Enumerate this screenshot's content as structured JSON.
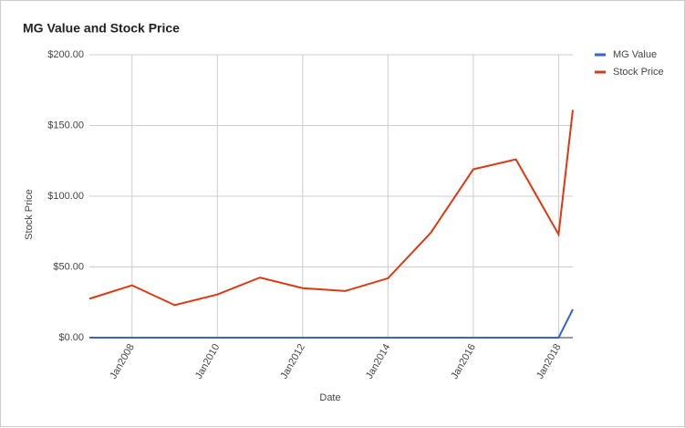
{
  "chart_data": {
    "type": "line",
    "title": "MG Value and Stock Price",
    "x_label": "Date",
    "y_label": "Stock Price",
    "x": [
      "2007-01",
      "2008-01",
      "2009-01",
      "2010-01",
      "2011-01",
      "2012-01",
      "2013-01",
      "2014-01",
      "2015-01",
      "2016-01",
      "2017-01",
      "2018-01",
      "2018-05"
    ],
    "series": [
      {
        "name": "MG Value",
        "color": "#3366cc",
        "values": [
          0,
          0,
          0,
          0,
          0,
          0,
          0,
          0,
          0,
          0,
          0,
          0,
          20
        ]
      },
      {
        "name": "Stock Price",
        "color": "#dc3912",
        "values": [
          27.5,
          37,
          23,
          30.5,
          42.5,
          35,
          33,
          42,
          74,
          119,
          126,
          73,
          161
        ]
      }
    ],
    "xlim": [
      "2007-01",
      "2018-05"
    ],
    "xticks": [
      {
        "value": "2008-01",
        "label": "Jan2008"
      },
      {
        "value": "2010-01",
        "label": "Jan2010"
      },
      {
        "value": "2012-01",
        "label": "Jan2012"
      },
      {
        "value": "2014-01",
        "label": "Jan2014"
      },
      {
        "value": "2016-01",
        "label": "Jan2016"
      },
      {
        "value": "2018-01",
        "label": "Jan2018"
      }
    ],
    "ylim": [
      0,
      200
    ],
    "yticks": [
      {
        "value": 0,
        "label": "$0.00"
      },
      {
        "value": 50,
        "label": "$50.00"
      },
      {
        "value": 100,
        "label": "$100.00"
      },
      {
        "value": 150,
        "label": "$150.00"
      },
      {
        "value": 200,
        "label": "$200.00"
      }
    ],
    "grid": true,
    "legend": "right"
  }
}
